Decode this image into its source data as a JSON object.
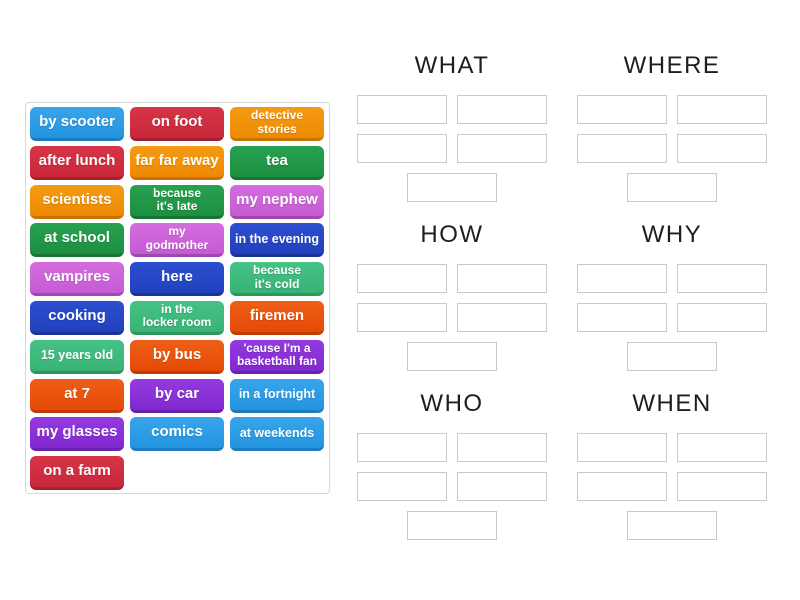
{
  "palette": {
    "blue": {
      "top": "#38a5ea",
      "base": "#2494e0",
      "edge": "#1b7cc0"
    },
    "red": {
      "top": "#d63447",
      "base": "#c9283a",
      "edge": "#a52030"
    },
    "orange": {
      "top": "#f49b13",
      "base": "#ee8a02",
      "edge": "#c77300"
    },
    "green": {
      "top": "#27a150",
      "base": "#1d8f41",
      "edge": "#187434"
    },
    "orchid": {
      "top": "#d46ddf",
      "base": "#c55bd3",
      "edge": "#a148ae"
    },
    "navy": {
      "top": "#2c4fd0",
      "base": "#2140bd",
      "edge": "#1a3399"
    },
    "emerald": {
      "top": "#46c287",
      "base": "#38b375",
      "edge": "#2e9560"
    },
    "vermillion": {
      "top": "#ee5f17",
      "base": "#e54a07",
      "edge": "#bf3c05"
    },
    "purple": {
      "top": "#933be0",
      "base": "#8129cf",
      "edge": "#6a21ab"
    }
  },
  "word_bank": {
    "tiles": [
      {
        "label": "by scooter",
        "color": "blue",
        "size": "md"
      },
      {
        "label": "on foot",
        "color": "red",
        "size": "md"
      },
      {
        "label": "detective\nstories",
        "color": "orange",
        "size": "xs"
      },
      {
        "label": "after lunch",
        "color": "red",
        "size": "md"
      },
      {
        "label": "far far away",
        "color": "orange",
        "size": "md"
      },
      {
        "label": "tea",
        "color": "green",
        "size": "md"
      },
      {
        "label": "scientists",
        "color": "orange",
        "size": "md"
      },
      {
        "label": "because\nit's late",
        "color": "green",
        "size": "xs"
      },
      {
        "label": "my nephew",
        "color": "orchid",
        "size": "md"
      },
      {
        "label": "at school",
        "color": "green",
        "size": "md"
      },
      {
        "label": "my\ngodmother",
        "color": "orchid",
        "size": "xs"
      },
      {
        "label": "in the evening",
        "color": "navy",
        "size": "sm"
      },
      {
        "label": "vampires",
        "color": "orchid",
        "size": "md"
      },
      {
        "label": "here",
        "color": "navy",
        "size": "md"
      },
      {
        "label": "because\nit's cold",
        "color": "emerald",
        "size": "xs"
      },
      {
        "label": "cooking",
        "color": "navy",
        "size": "md"
      },
      {
        "label": "in the\nlocker room",
        "color": "emerald",
        "size": "xs"
      },
      {
        "label": "firemen",
        "color": "vermillion",
        "size": "md"
      },
      {
        "label": "15 years old",
        "color": "emerald",
        "size": "sm"
      },
      {
        "label": "by bus",
        "color": "vermillion",
        "size": "md"
      },
      {
        "label": "'cause I'm a\nbasketball fan",
        "color": "purple",
        "size": "xs"
      },
      {
        "label": "at 7",
        "color": "vermillion",
        "size": "md"
      },
      {
        "label": "by car",
        "color": "purple",
        "size": "md"
      },
      {
        "label": "in a fortnight",
        "color": "blue",
        "size": "sm"
      },
      {
        "label": "my glasses",
        "color": "purple",
        "size": "md"
      },
      {
        "label": "comics",
        "color": "blue",
        "size": "md"
      },
      {
        "label": "at weekends",
        "color": "blue",
        "size": "sm"
      },
      {
        "label": "on a farm",
        "color": "red",
        "size": "md"
      }
    ]
  },
  "groups": [
    {
      "label": "WHAT",
      "slot_count": 5
    },
    {
      "label": "WHERE",
      "slot_count": 5
    },
    {
      "label": "HOW",
      "slot_count": 5
    },
    {
      "label": "WHY",
      "slot_count": 5
    },
    {
      "label": "WHO",
      "slot_count": 5
    },
    {
      "label": "WHEN",
      "slot_count": 5
    }
  ]
}
